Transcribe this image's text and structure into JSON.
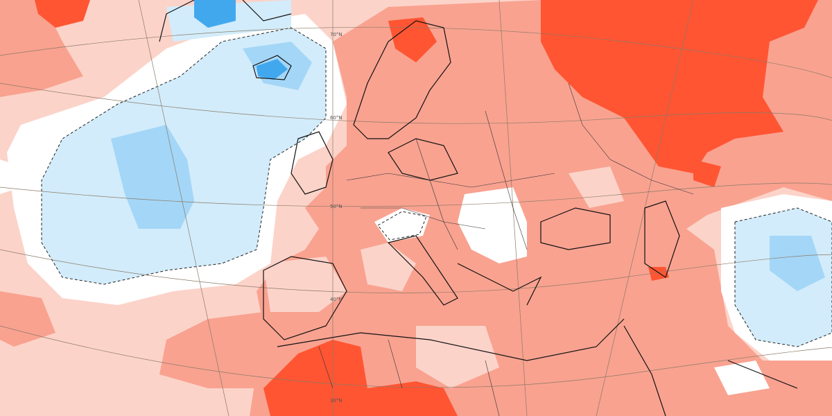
{
  "map": {
    "type": "anomaly-map",
    "region": "Europe",
    "legend": null,
    "colors": {
      "strong_warm": "#ff5533",
      "warm": "#f9a290",
      "slight_warm": "#fcd3c9",
      "neutral": "#ffffff",
      "slight_cold": "#d2ecfb",
      "cold": "#a4d6f7",
      "strong_cold": "#42a8ee",
      "coastline": "#111111",
      "graticule": "#8a7a66"
    },
    "latitude_labels": [
      "70°N",
      "60°N",
      "50°N",
      "40°N",
      "30°N"
    ]
  }
}
